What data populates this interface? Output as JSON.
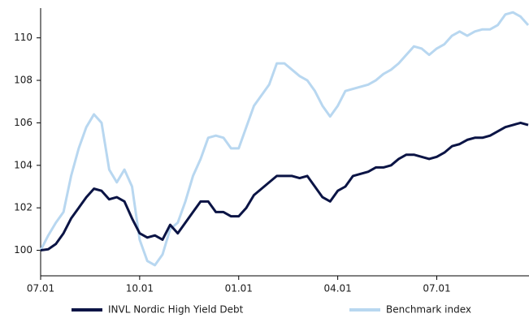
{
  "chart_data": {
    "type": "line",
    "categories": [
      "07.01",
      null,
      null,
      null,
      null,
      null,
      null,
      null,
      null,
      null,
      null,
      null,
      null,
      "10.01",
      null,
      null,
      null,
      null,
      null,
      null,
      null,
      null,
      null,
      null,
      null,
      null,
      "01.01",
      null,
      null,
      null,
      null,
      null,
      null,
      null,
      null,
      null,
      null,
      null,
      null,
      "04.01",
      null,
      null,
      null,
      null,
      null,
      null,
      null,
      null,
      null,
      null,
      null,
      null,
      "07.01",
      null,
      null,
      null,
      null,
      null,
      null,
      null,
      null,
      null,
      null,
      null,
      null
    ],
    "series": [
      {
        "name": "INVL Nordic High Yield Debt",
        "color": "#0b1445",
        "values": [
          100.0,
          100.05,
          100.3,
          100.8,
          101.5,
          102.0,
          102.5,
          102.9,
          102.8,
          102.4,
          102.5,
          102.3,
          101.5,
          100.8,
          100.6,
          100.7,
          100.5,
          101.2,
          100.8,
          101.3,
          101.8,
          102.3,
          102.3,
          101.8,
          101.8,
          101.6,
          101.6,
          102.0,
          102.6,
          102.9,
          103.2,
          103.5,
          103.5,
          103.5,
          103.4,
          103.5,
          103.0,
          102.5,
          102.3,
          102.8,
          103.0,
          103.5,
          103.6,
          103.7,
          103.9,
          103.9,
          104.0,
          104.3,
          104.5,
          104.5,
          104.4,
          104.3,
          104.4,
          104.6,
          104.9,
          105.0,
          105.2,
          105.3,
          105.3,
          105.4,
          105.6,
          105.8,
          105.9,
          106.0,
          105.9
        ]
      },
      {
        "name": "Benchmark index",
        "color": "#b8d7f0",
        "values": [
          100.0,
          100.7,
          101.3,
          101.8,
          103.5,
          104.8,
          105.8,
          106.4,
          106.0,
          103.8,
          103.2,
          103.8,
          103.0,
          100.5,
          99.5,
          99.3,
          99.8,
          101.0,
          101.3,
          102.3,
          103.5,
          104.3,
          105.3,
          105.4,
          105.3,
          104.8,
          104.8,
          105.8,
          106.8,
          107.3,
          107.8,
          108.8,
          108.8,
          108.5,
          108.2,
          108.0,
          107.5,
          106.8,
          106.3,
          106.8,
          107.5,
          107.6,
          107.7,
          107.8,
          108.0,
          108.3,
          108.5,
          108.8,
          109.2,
          109.6,
          109.5,
          109.2,
          109.5,
          109.7,
          110.1,
          110.3,
          110.1,
          110.3,
          110.4,
          110.4,
          110.6,
          111.1,
          111.2,
          111.0,
          110.6
        ]
      }
    ],
    "ylim": [
      98.8,
      111.4
    ],
    "yticks": [
      100,
      102,
      104,
      106,
      108,
      110
    ]
  }
}
